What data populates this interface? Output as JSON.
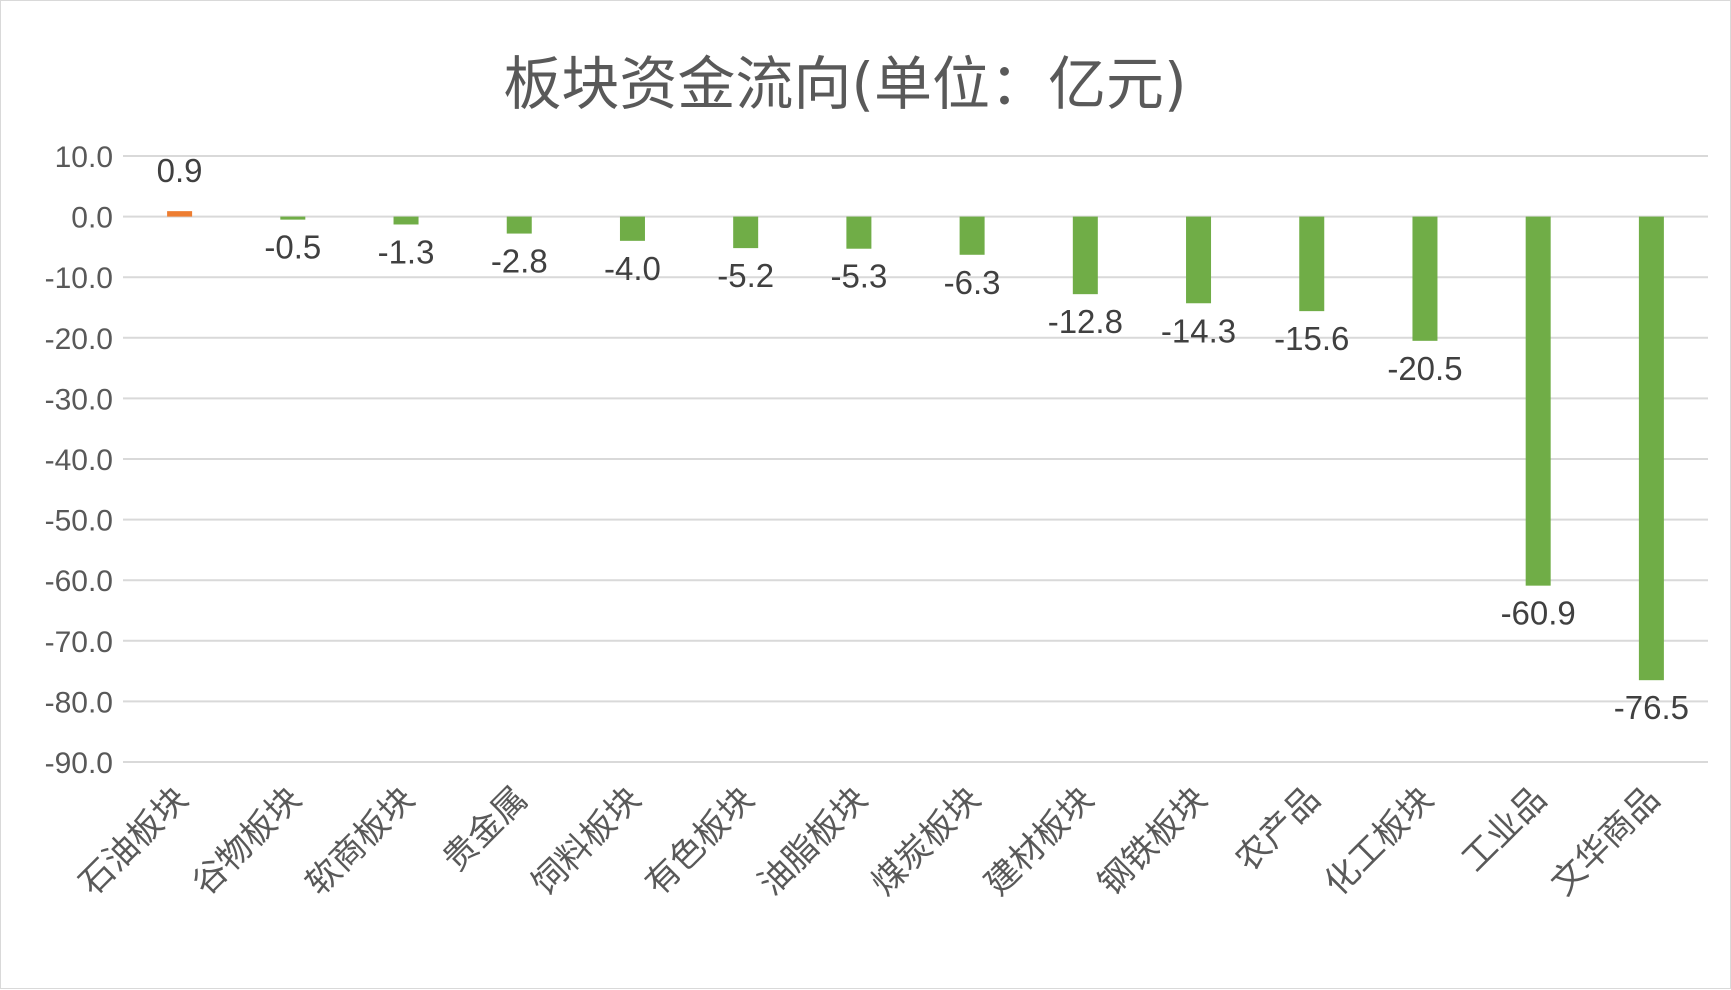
{
  "chart_data": {
    "type": "bar",
    "title": "板块资金流向(单位：亿元)",
    "xlabel": "",
    "ylabel": "",
    "ylim": [
      -90,
      10
    ],
    "y_ticks": [
      "10.0",
      "0.0",
      "-10.0",
      "-20.0",
      "-30.0",
      "-40.0",
      "-50.0",
      "-60.0",
      "-70.0",
      "-80.0",
      "-90.0"
    ],
    "grid": true,
    "legend": "none",
    "categories": [
      "石油板块",
      "谷物板块",
      "软商板块",
      "贵金属",
      "饲料板块",
      "有色板块",
      "油脂板块",
      "煤炭板块",
      "建材板块",
      "钢铁板块",
      "农产品",
      "化工板块",
      "工业品",
      "文华商品"
    ],
    "values": [
      0.9,
      -0.5,
      -1.3,
      -2.8,
      -4.0,
      -5.2,
      -5.3,
      -6.3,
      -12.8,
      -14.3,
      -15.6,
      -20.5,
      -60.9,
      -76.5
    ],
    "value_labels": [
      "0.9",
      "-0.5",
      "-1.3",
      "-2.8",
      "-4.0",
      "-5.2",
      "-5.3",
      "-6.3",
      "-12.8",
      "-14.3",
      "-15.6",
      "-20.5",
      "-60.9",
      "-76.5"
    ],
    "colors": {
      "positive": "#ed7d31",
      "negative": "#70ad47"
    }
  }
}
